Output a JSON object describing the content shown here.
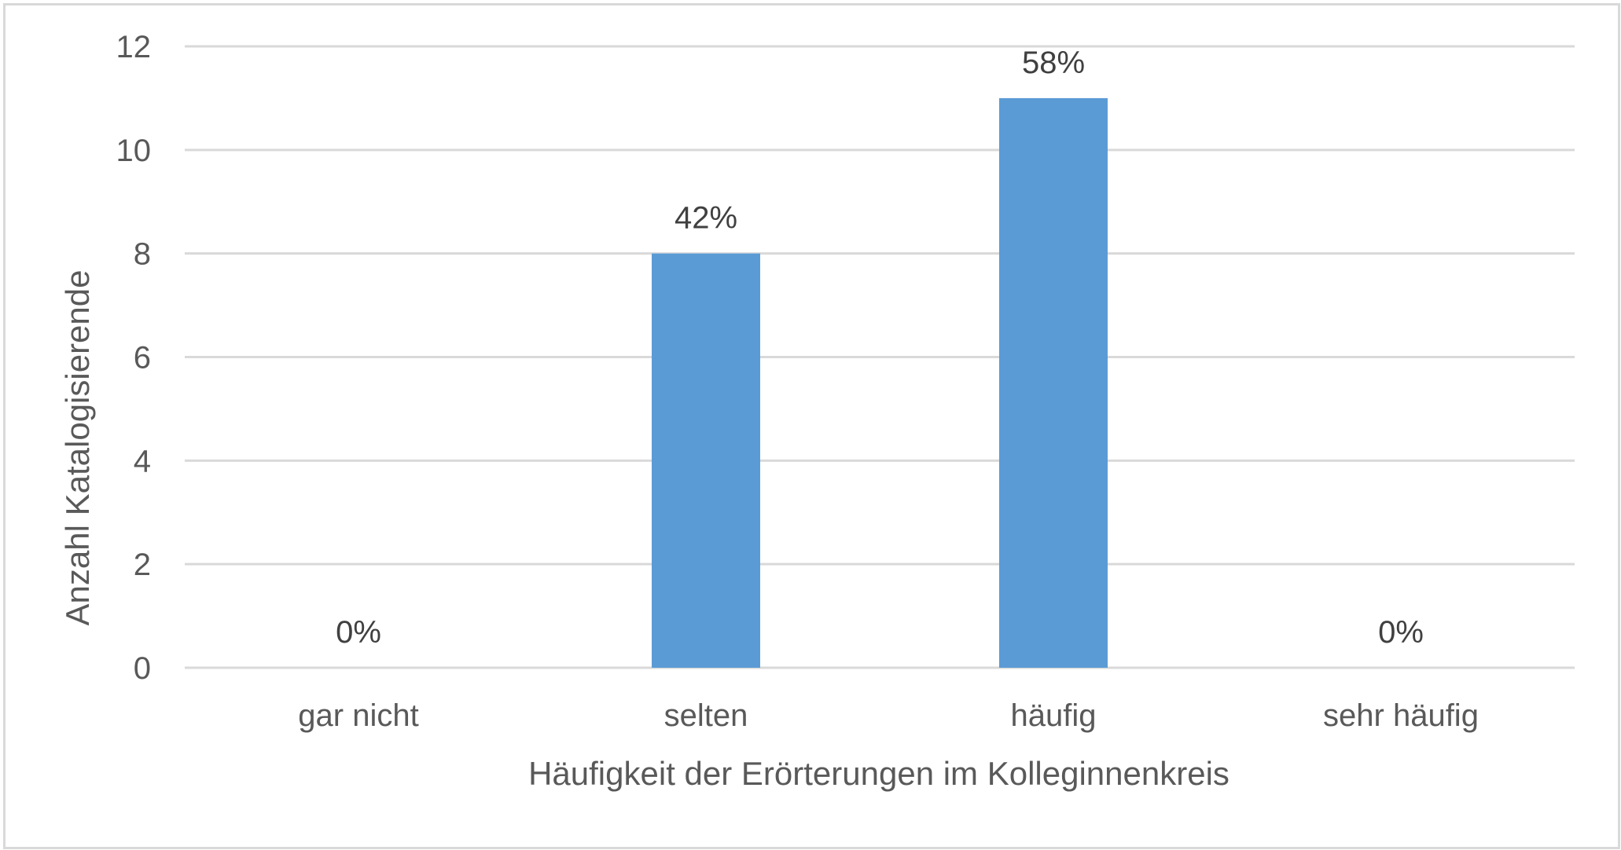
{
  "chart_data": {
    "type": "bar",
    "categories": [
      "gar nicht",
      "selten",
      "häufig",
      "sehr häufig"
    ],
    "values": [
      0,
      8,
      11,
      0
    ],
    "data_labels": [
      "0%",
      "42%",
      "58%",
      "0%"
    ],
    "title": "",
    "xlabel": "Häufigkeit der Erörterungen im Kolleginnenkreis",
    "ylabel": "Anzahl Katalogisierende",
    "ylim": [
      0,
      12
    ],
    "yticks": [
      0,
      2,
      4,
      6,
      8,
      10,
      12
    ],
    "grid": true,
    "legend": "none",
    "colors": {
      "bar": "#5b9bd5",
      "grid": "#d9d9d9",
      "text": "#595959",
      "label": "#404040"
    }
  }
}
